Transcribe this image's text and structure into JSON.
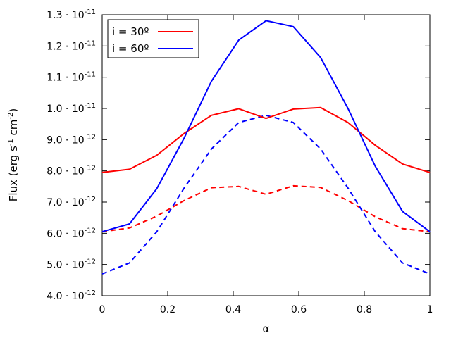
{
  "chart_data": {
    "type": "line",
    "title": "",
    "xlabel": "α",
    "ylabel": "Flux (erg s⁻¹ cm⁻²)",
    "xlim": [
      0,
      1
    ],
    "ylim": [
      4e-12,
      1.3e-11
    ],
    "x_ticks": [
      0,
      0.2,
      0.4,
      0.6,
      0.8,
      1
    ],
    "x_tick_labels": [
      "0",
      "0.2",
      "0.4",
      "0.6",
      "0.8",
      "1"
    ],
    "y_ticks": [
      4e-12,
      5e-12,
      6e-12,
      7e-12,
      8e-12,
      9e-12,
      1e-11,
      1.1e-11,
      1.2e-11,
      1.3e-11
    ],
    "y_tick_mantissa": [
      "4.0",
      "5.0",
      "6.0",
      "7.0",
      "8.0",
      "9.0",
      "1.0",
      "1.1",
      "1.2",
      "1.3"
    ],
    "y_tick_exponent": [
      "-12",
      "-12",
      "-12",
      "-12",
      "-12",
      "-12",
      "-11",
      "-11",
      "-11",
      "-11"
    ],
    "y_tick_base": "· 10",
    "grid": false,
    "legend_position": "top-left",
    "x": [
      0,
      0.0833,
      0.1667,
      0.25,
      0.3333,
      0.4167,
      0.5,
      0.5833,
      0.6667,
      0.75,
      0.8333,
      0.9167,
      1.0
    ],
    "series": [
      {
        "name": "i = 30º",
        "color": "#ff0000",
        "dash": false,
        "in_legend": true,
        "values": [
          7.95e-12,
          8.05e-12,
          8.5e-12,
          9.2e-12,
          9.78e-12,
          9.99e-12,
          9.68e-12,
          9.98e-12,
          1.003e-11,
          9.55e-12,
          8.82e-12,
          8.22e-12,
          7.95e-12
        ]
      },
      {
        "name": "i = 60º",
        "color": "#0000ff",
        "dash": false,
        "in_legend": true,
        "values": [
          6.05e-12,
          6.3e-12,
          7.43e-12,
          9.05e-12,
          1.087e-11,
          1.219e-11,
          1.281e-11,
          1.262e-11,
          1.163e-11,
          1e-11,
          8.15e-12,
          6.7e-12,
          6.05e-12
        ]
      },
      {
        "name": "i = 30º (dashed)",
        "color": "#ff0000",
        "dash": true,
        "in_legend": false,
        "values": [
          6.05e-12,
          6.17e-12,
          6.55e-12,
          7.05e-12,
          7.46e-12,
          7.5e-12,
          7.25e-12,
          7.52e-12,
          7.47e-12,
          7.05e-12,
          6.53e-12,
          6.15e-12,
          6.05e-12
        ]
      },
      {
        "name": "i = 60º (dashed)",
        "color": "#0000ff",
        "dash": true,
        "in_legend": false,
        "values": [
          4.7e-12,
          5.05e-12,
          6.05e-12,
          7.45e-12,
          8.7e-12,
          9.55e-12,
          9.78e-12,
          9.55e-12,
          8.7e-12,
          7.45e-12,
          6.05e-12,
          5.05e-12,
          4.7e-12
        ]
      }
    ]
  }
}
